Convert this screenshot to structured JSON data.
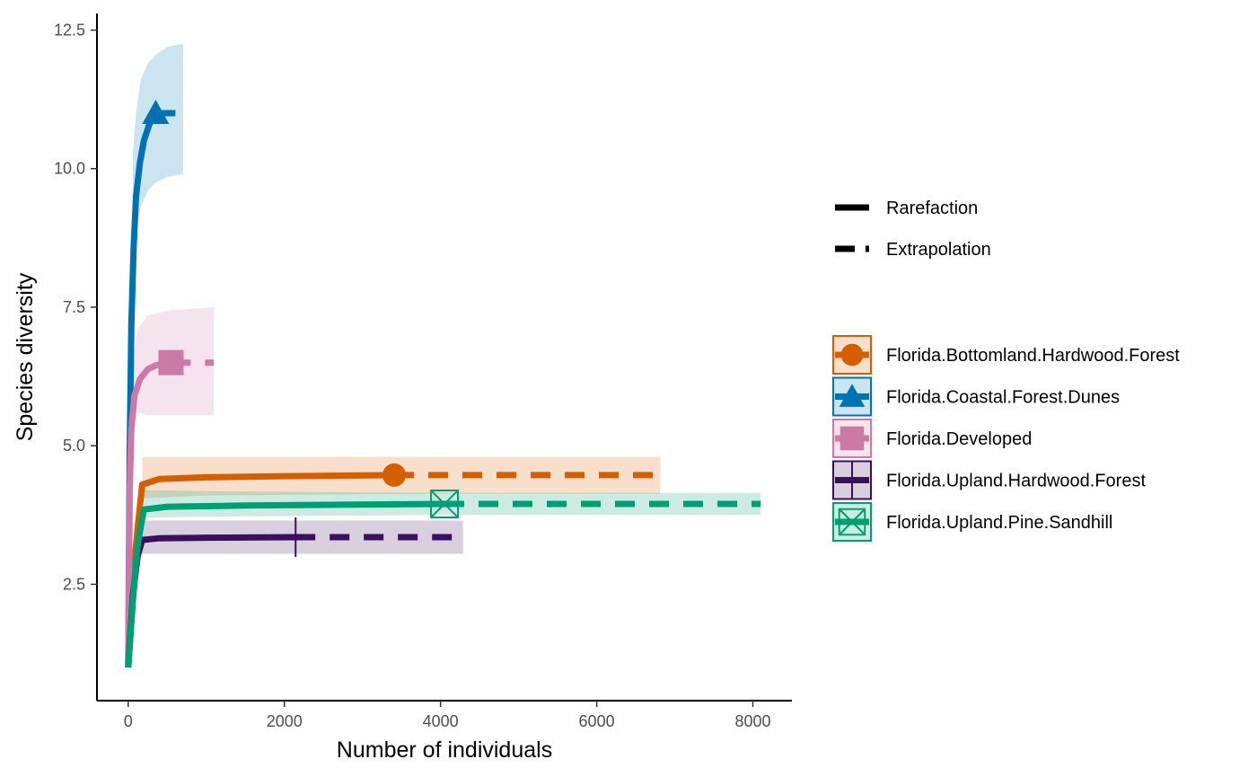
{
  "chart_data": {
    "type": "line",
    "title": "",
    "xlabel": "Number of individuals",
    "ylabel": "Species diversity",
    "xlim": [
      -400,
      8500
    ],
    "ylim": [
      0.4,
      12.8
    ],
    "x_ticks": [
      0,
      2000,
      4000,
      6000,
      8000
    ],
    "x_tick_labels": [
      "0",
      "2000",
      "4000",
      "6000",
      "8000"
    ],
    "y_ticks": [
      2.5,
      5.0,
      7.5,
      10.0,
      12.5
    ],
    "y_tick_labels": [
      "2.5",
      "5.0",
      "7.5",
      "10.0",
      "12.5"
    ],
    "grid": false,
    "legend_position": "right",
    "linetype_legend": [
      {
        "label": "Rarefaction",
        "style": "solid"
      },
      {
        "label": "Extrapolation",
        "style": "dashed"
      }
    ],
    "series": [
      {
        "name": "Florida.Bottomland.Hardwood.Forest",
        "color": "#D55E00",
        "marker": "circle",
        "rarefaction": [
          [
            0,
            1
          ],
          [
            60,
            2.6
          ],
          [
            120,
            3.5
          ],
          [
            180,
            4.3
          ],
          [
            400,
            4.4
          ],
          [
            1000,
            4.43
          ],
          [
            2000,
            4.45
          ],
          [
            3406,
            4.47
          ]
        ],
        "extrapolation": [
          [
            3406,
            4.47
          ],
          [
            4500,
            4.47
          ],
          [
            5500,
            4.47
          ],
          [
            6813,
            4.47
          ]
        ],
        "band": [
          [
            180,
            4.05,
            4.8
          ],
          [
            1000,
            4.1,
            4.8
          ],
          [
            3406,
            4.13,
            4.8
          ],
          [
            6813,
            4.13,
            4.8
          ]
        ],
        "observed": [
          3406,
          4.47
        ]
      },
      {
        "name": "Florida.Coastal.Forest.Dunes",
        "color": "#0072B2",
        "marker": "triangle",
        "rarefaction": [
          [
            0,
            1
          ],
          [
            20,
            5
          ],
          [
            40,
            7.2
          ],
          [
            70,
            8.6
          ],
          [
            100,
            9.5
          ],
          [
            150,
            10.1
          ],
          [
            200,
            10.5
          ],
          [
            270,
            10.8
          ],
          [
            352,
            11.0
          ]
        ],
        "extrapolation": [
          [
            352,
            11.0
          ],
          [
            500,
            11.0
          ],
          [
            704,
            11.0
          ]
        ],
        "band": [
          [
            60,
            8.0,
            10.3
          ],
          [
            100,
            8.9,
            11.0
          ],
          [
            160,
            9.3,
            11.6
          ],
          [
            250,
            9.6,
            11.9
          ],
          [
            352,
            9.75,
            12.05
          ],
          [
            500,
            9.85,
            12.2
          ],
          [
            704,
            9.9,
            12.25
          ]
        ],
        "observed": [
          352,
          11.0
        ]
      },
      {
        "name": "Florida.Developed",
        "color": "#CC79A7",
        "marker": "square",
        "rarefaction": [
          [
            0,
            1
          ],
          [
            20,
            4.2
          ],
          [
            40,
            5.3
          ],
          [
            80,
            5.9
          ],
          [
            150,
            6.2
          ],
          [
            250,
            6.38
          ],
          [
            350,
            6.45
          ],
          [
            548,
            6.5
          ]
        ],
        "extrapolation": [
          [
            548,
            6.5
          ],
          [
            800,
            6.5
          ],
          [
            1096,
            6.5
          ]
        ],
        "band": [
          [
            60,
            5.6,
            6.6
          ],
          [
            120,
            5.6,
            7.1
          ],
          [
            250,
            5.55,
            7.35
          ],
          [
            548,
            5.55,
            7.45
          ],
          [
            1096,
            5.55,
            7.5
          ]
        ],
        "observed": [
          548,
          6.5
        ]
      },
      {
        "name": "Florida.Upland.Hardwood.Forest",
        "color": "#3B0F5F",
        "marker": "cross",
        "rarefaction": [
          [
            0,
            1
          ],
          [
            60,
            2.3
          ],
          [
            120,
            3.0
          ],
          [
            180,
            3.3
          ],
          [
            400,
            3.33
          ],
          [
            1000,
            3.34
          ],
          [
            2144,
            3.35
          ]
        ],
        "extrapolation": [
          [
            2144,
            3.35
          ],
          [
            3000,
            3.35
          ],
          [
            4288,
            3.35
          ]
        ],
        "band": [
          [
            180,
            3.05,
            3.65
          ],
          [
            1000,
            3.05,
            3.65
          ],
          [
            2144,
            3.05,
            3.65
          ],
          [
            4288,
            3.05,
            3.65
          ]
        ],
        "observed": [
          2144,
          3.35
        ]
      },
      {
        "name": "Florida.Upland.Pine.Sandhill",
        "color": "#009E73",
        "marker": "boxed-x",
        "rarefaction": [
          [
            0,
            1
          ],
          [
            60,
            2.2
          ],
          [
            120,
            3.2
          ],
          [
            200,
            3.85
          ],
          [
            500,
            3.9
          ],
          [
            1500,
            3.92
          ],
          [
            4050,
            3.95
          ]
        ],
        "extrapolation": [
          [
            4050,
            3.95
          ],
          [
            6000,
            3.95
          ],
          [
            8100,
            3.95
          ]
        ],
        "band": [
          [
            200,
            3.7,
            4.2
          ],
          [
            1000,
            3.72,
            4.18
          ],
          [
            4050,
            3.75,
            4.15
          ],
          [
            8100,
            3.75,
            4.15
          ]
        ],
        "observed": [
          4050,
          3.95
        ]
      }
    ]
  }
}
